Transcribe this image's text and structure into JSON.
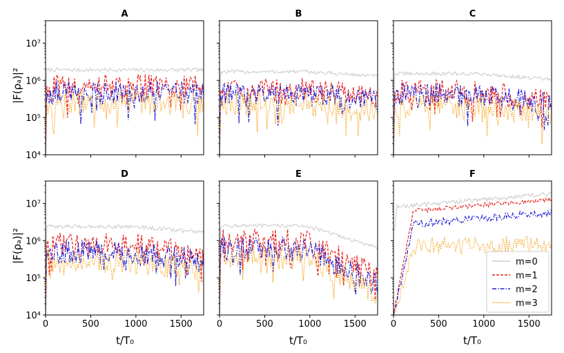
{
  "chart_data": {
    "type": "line",
    "layout": "2x3 grid of panels with shared axes",
    "xlabel": "t/T₀",
    "ylabel": "|F(ρₐ)|²",
    "xlim": [
      0,
      1750
    ],
    "ylim": [
      10000,
      40000000
    ],
    "yscale": "log",
    "x_ticks": [
      0,
      500,
      1000,
      1500
    ],
    "x_tick_labels": [
      "0",
      "500",
      "1000",
      "1500"
    ],
    "y_ticks": [
      10000,
      100000,
      1000000,
      10000000
    ],
    "y_tick_labels": [
      "10⁴",
      "10⁵",
      "10⁶",
      "10⁷"
    ],
    "series": [
      {
        "name": "m=0",
        "color": "#cccccc",
        "style": "solid"
      },
      {
        "name": "m=1",
        "color": "#e8211e",
        "style": "dashed"
      },
      {
        "name": "m=2",
        "color": "#1f1fd6",
        "style": "dashdot"
      },
      {
        "name": "m=3",
        "color": "#f5a623",
        "style": "dotted"
      }
    ],
    "legend": {
      "panel": "F",
      "position": "lower-right",
      "entries": [
        "m=0",
        "m=1",
        "m=2",
        "m=3"
      ]
    },
    "panels": [
      {
        "title": "A",
        "levels": [
          1900000,
          700000,
          450000,
          250000
        ],
        "decay": 0.0,
        "growth": false
      },
      {
        "title": "B",
        "levels": [
          1700000,
          550000,
          420000,
          230000
        ],
        "decay": 0.15,
        "growth": false
      },
      {
        "title": "C",
        "levels": [
          1500000,
          500000,
          400000,
          200000
        ],
        "decay": 0.2,
        "growth": false
      },
      {
        "title": "D",
        "levels": [
          2400000,
          800000,
          500000,
          280000
        ],
        "decay": 0.2,
        "growth": false
      },
      {
        "title": "E",
        "levels": [
          2500000,
          1000000,
          600000,
          350000
        ],
        "decay": 0.75,
        "growth": false
      },
      {
        "title": "F",
        "levels": [
          12000000,
          8500000,
          3800000,
          750000
        ],
        "decay": 0.0,
        "growth": true
      }
    ]
  }
}
